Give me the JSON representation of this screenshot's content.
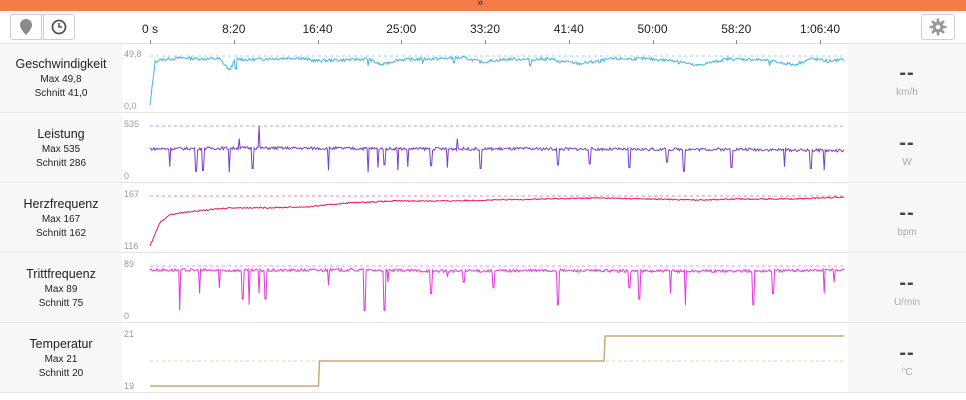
{
  "time_axis": {
    "ticks": [
      "0 s",
      "8:20",
      "16:40",
      "25:00",
      "33:20",
      "41:40",
      "50:00",
      "58:20",
      "1:06:40"
    ]
  },
  "rows": [
    {
      "name": "Geschwindigkeit",
      "max": "Max 49,8",
      "avg": "Schnitt 41,0",
      "value": "--",
      "unit": "km/h",
      "ymax_label": "49,8",
      "ymin_label": "0,0"
    },
    {
      "name": "Leistung",
      "max": "Max 535",
      "avg": "Schnitt 286",
      "value": "--",
      "unit": "W",
      "ymax_label": "535",
      "ymin_label": "0"
    },
    {
      "name": "Herzfrequenz",
      "max": "Max 167",
      "avg": "Schnitt 162",
      "value": "--",
      "unit": "bpm",
      "ymax_label": "167",
      "ymin_label": "116"
    },
    {
      "name": "Trittfrequenz",
      "max": "Max 89",
      "avg": "Schnitt 75",
      "value": "--",
      "unit": "U/min",
      "ymax_label": "89",
      "ymin_label": "0"
    },
    {
      "name": "Temperatur",
      "max": "Max 21",
      "avg": "Schnitt 20",
      "value": "--",
      "unit": "°C",
      "ymax_label": "21",
      "ymin_label": "19"
    }
  ],
  "chart_data": [
    {
      "type": "line",
      "name": "Geschwindigkeit",
      "unit": "km/h",
      "color": "#4ab3dc",
      "ylim": [
        0,
        49.8
      ],
      "avg": 41.0,
      "x_seconds": [
        0,
        30,
        60,
        200,
        300,
        420,
        480,
        520,
        600,
        700,
        900,
        1000,
        1200,
        1320,
        1400,
        1500,
        1700,
        1900,
        2000,
        2200,
        2300,
        2400,
        2600,
        2800,
        3000,
        3200,
        3300,
        3500,
        3700,
        3900,
        4000,
        4100,
        4200
      ],
      "values": [
        0,
        44,
        46,
        48,
        47,
        47,
        36,
        47,
        46,
        47,
        48,
        45,
        46,
        47,
        41,
        46,
        47,
        48,
        44,
        47,
        46,
        47,
        42,
        47,
        47,
        45,
        40,
        47,
        46,
        41,
        47,
        45,
        46
      ],
      "dips_seconds": [
        480,
        520,
        1320,
        1650,
        1840,
        2030,
        2300,
        2480,
        2720,
        3200,
        3750,
        3900,
        4100
      ],
      "dips_values": [
        36,
        37,
        40,
        42,
        43,
        43,
        40,
        43,
        43,
        42,
        40,
        41,
        43
      ]
    },
    {
      "type": "line",
      "name": "Leistung",
      "unit": "W",
      "color": "#7b3fc4",
      "ylim": [
        0,
        535
      ],
      "avg": 286,
      "x_seconds": [
        0,
        600,
        1200,
        1800,
        2400,
        3000,
        3600,
        4200
      ],
      "values": [
        290,
        300,
        295,
        290,
        290,
        285,
        285,
        270
      ],
      "dips_seconds": [
        120,
        280,
        320,
        480,
        540,
        620,
        660,
        1080,
        1320,
        1380,
        1420,
        1500,
        1560,
        1700,
        1800,
        2000,
        2470,
        2660,
        2900,
        3130,
        3230,
        3520,
        3840,
        4000,
        4080
      ],
      "dips_values": [
        100,
        50,
        60,
        40,
        30,
        80,
        100,
        60,
        40,
        90,
        120,
        60,
        100,
        110,
        90,
        80,
        120,
        130,
        90,
        150,
        50,
        90,
        100,
        80,
        60
      ],
      "peaks_seconds": [
        540,
        660,
        1860
      ],
      "peaks_values": [
        400,
        535,
        400
      ]
    },
    {
      "type": "line",
      "name": "Herzfrequenz",
      "unit": "bpm",
      "color": "#e11c5a",
      "ylim": [
        116,
        167
      ],
      "avg": 162,
      "x_seconds": [
        0,
        60,
        120,
        240,
        480,
        720,
        960,
        1200,
        1500,
        1800,
        2100,
        2400,
        2700,
        3000,
        3300,
        3600,
        3900,
        4200
      ],
      "values": [
        116,
        140,
        148,
        151,
        155,
        155,
        156,
        160,
        162,
        162,
        163,
        164,
        165,
        164,
        163,
        164,
        164,
        166
      ]
    },
    {
      "type": "line",
      "name": "Trittfrequenz",
      "unit": "U/min",
      "color": "#e03adf",
      "ylim": [
        0,
        89
      ],
      "avg": 75,
      "x_seconds": [
        0,
        600,
        1200,
        1800,
        2400,
        3000,
        3600,
        4200
      ],
      "values": [
        82,
        81,
        82,
        80,
        81,
        80,
        80,
        82
      ],
      "dips_seconds": [
        180,
        300,
        420,
        560,
        600,
        660,
        700,
        1080,
        1300,
        1420,
        1440,
        1700,
        1800,
        1900,
        2080,
        2470,
        2900,
        2960,
        3150,
        3240,
        3650,
        3770,
        4080,
        4140
      ],
      "dips_values": [
        10,
        40,
        50,
        30,
        20,
        40,
        30,
        55,
        10,
        10,
        60,
        40,
        70,
        60,
        50,
        20,
        50,
        30,
        40,
        20,
        20,
        40,
        40,
        60
      ]
    },
    {
      "type": "line",
      "name": "Temperatur",
      "unit": "°C",
      "color": "#c8a97a",
      "ylim": [
        19,
        21
      ],
      "avg": 20,
      "x_seconds": [
        0,
        1020,
        1021,
        2750,
        2751,
        4200
      ],
      "values": [
        19,
        19,
        20,
        20,
        21,
        21
      ]
    }
  ],
  "icons": {
    "map": "map-pin-icon",
    "clock": "clock-icon",
    "settings": "gear-icon",
    "collapse": "double-chevron-down-icon"
  }
}
